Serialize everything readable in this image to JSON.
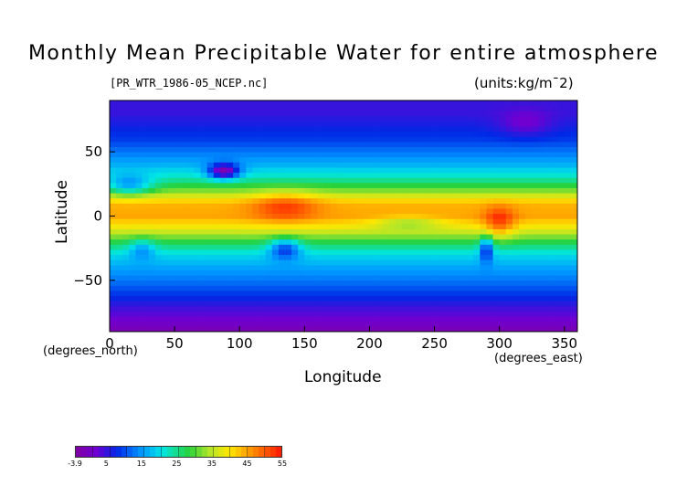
{
  "chart_data": {
    "type": "heatmap",
    "title": "Monthly Mean Precipitable Water for entire atmosphere",
    "subtitle_left": "[PR_WTR_1986-05_NCEP.nc]",
    "subtitle_right": "(units:kg/m¯2)",
    "xlabel": "Longitude",
    "ylabel": "Latitude",
    "x_unit": "(degrees_east)",
    "y_unit": "(degrees_north)",
    "xlim": [
      0,
      360
    ],
    "ylim": [
      -90,
      90
    ],
    "x_ticks": [
      0,
      50,
      100,
      150,
      200,
      250,
      300,
      350
    ],
    "x_tick_labels": [
      "0",
      "50",
      "100",
      "150",
      "200",
      "250",
      "300",
      "350"
    ],
    "y_ticks": [
      50,
      0,
      -50
    ],
    "y_tick_labels": [
      "50",
      "0",
      "−50"
    ],
    "zonal_profile": {
      "lat": [
        -90,
        -80,
        -70,
        -60,
        -50,
        -40,
        -30,
        -20,
        -10,
        0,
        10,
        20,
        30,
        40,
        50,
        60,
        70,
        80,
        90
      ],
      "value": [
        -2,
        2,
        5,
        9,
        13,
        16,
        20,
        28,
        38,
        45,
        44,
        32,
        23,
        17,
        13,
        9,
        7,
        5,
        5
      ]
    },
    "colorbar": {
      "tick_labels": [
        "-3.9",
        "5",
        "15",
        "25",
        "35",
        "45",
        "55"
      ],
      "tick_values": [
        -3.9,
        5,
        15,
        25,
        35,
        45,
        55
      ],
      "range": [
        -3.9,
        55
      ]
    }
  }
}
